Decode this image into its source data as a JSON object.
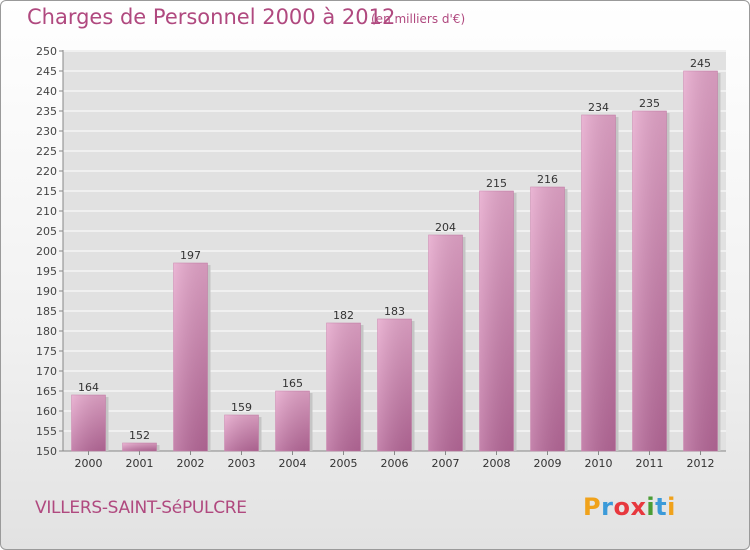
{
  "header": {
    "title": "Charges de Personnel 2000 à 2012",
    "subtitle": "(en milliers d'€)"
  },
  "footer": {
    "commune": "VILLERS-SAINT-SéPULCRE",
    "logo": {
      "letters": [
        "P",
        "r",
        "o",
        "x",
        "i",
        "t",
        "i"
      ],
      "text": "Proxiti"
    }
  },
  "chart_data": {
    "type": "bar",
    "title": "Charges de Personnel 2000 à 2012",
    "subtitle": "(en milliers d'€)",
    "xlabel": "",
    "ylabel": "",
    "categories": [
      "2000",
      "2001",
      "2002",
      "2003",
      "2004",
      "2005",
      "2006",
      "2007",
      "2008",
      "2009",
      "2010",
      "2011",
      "2012"
    ],
    "values": [
      164,
      152,
      197,
      159,
      165,
      182,
      183,
      204,
      215,
      216,
      234,
      235,
      245
    ],
    "ylim": [
      150,
      250
    ],
    "ytick_step": 5,
    "yticks": [
      "150",
      "155",
      "160",
      "165",
      "170",
      "175",
      "180",
      "185",
      "190",
      "195",
      "200",
      "205",
      "210",
      "215",
      "220",
      "225",
      "230",
      "235",
      "240",
      "245",
      "250"
    ],
    "grid": "horizontal",
    "bar_color": "#d98fbb",
    "data_labels": true
  },
  "colors": {
    "accent": "#b0497f",
    "bar": "#d98fbb",
    "plot_background": "#e1e1e1",
    "grid": "#ffffff"
  }
}
